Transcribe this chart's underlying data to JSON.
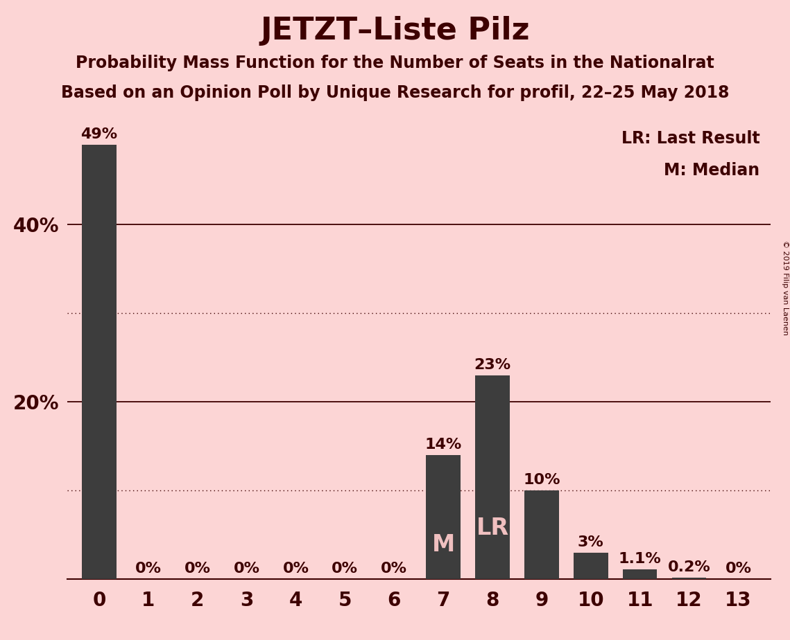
{
  "title": "JETZT–Liste Pilz",
  "subtitle1": "Probability Mass Function for the Number of Seats in the Nationalrat",
  "subtitle2": "Based on an Opinion Poll by Unique Research for profil, 22–25 May 2018",
  "copyright": "© 2019 Filip van Laenen",
  "legend_lr": "LR: Last Result",
  "legend_m": "M: Median",
  "categories": [
    0,
    1,
    2,
    3,
    4,
    5,
    6,
    7,
    8,
    9,
    10,
    11,
    12,
    13
  ],
  "values": [
    49,
    0,
    0,
    0,
    0,
    0,
    0,
    14,
    23,
    10,
    3,
    1.1,
    0.2,
    0
  ],
  "bar_labels": [
    "49%",
    "0%",
    "0%",
    "0%",
    "0%",
    "0%",
    "0%",
    "14%",
    "23%",
    "10%",
    "3%",
    "1.1%",
    "0.2%",
    "0%"
  ],
  "bar_color": "#3d3d3d",
  "background_color": "#fcd5d5",
  "text_color": "#3d0000",
  "label_color_outside": "#3d0000",
  "label_color_inside": "#f0c0c0",
  "median_bar_idx": 7,
  "lr_bar_idx": 8,
  "ylim_max": 52,
  "solid_lines": [
    20,
    40
  ],
  "dotted_lines": [
    10,
    30
  ],
  "title_fontsize": 32,
  "subtitle_fontsize": 17,
  "ylabel_fontsize": 20,
  "xlabel_fontsize": 20,
  "bar_label_fontsize": 16,
  "inside_label_fontsize": 24,
  "legend_fontsize": 17
}
